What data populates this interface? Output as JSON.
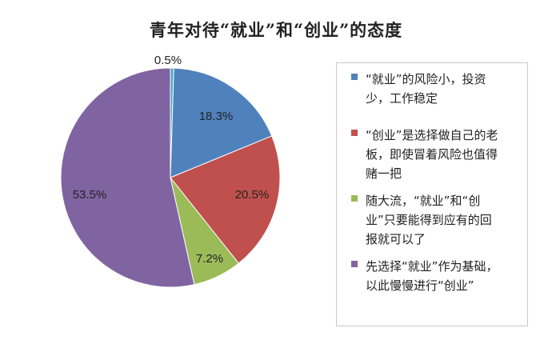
{
  "chart_data": {
    "type": "pie",
    "title": "青年对待“就业”和“创业”的态度",
    "legend_position": "right",
    "slices": [
      {
        "label": "“就业”的风险小，投资少，工作稳定",
        "value": 18.3,
        "display": "18.3%",
        "color": "#4F81BD"
      },
      {
        "label": "“创业”是选择做自己的老板，即使冒着风险也值得赌一把",
        "value": 20.5,
        "display": "20.5%",
        "color": "#C0504D"
      },
      {
        "label": "随大流，“就业”和“创业”只要能得到应有的回报就可以了",
        "value": 7.2,
        "display": "7.2%",
        "color": "#9BBB59"
      },
      {
        "label": "先选择“就业”作为基础，以此慢慢进行“创业”",
        "value": 53.5,
        "display": "53.5%",
        "color": "#8064A2"
      },
      {
        "label": "",
        "value": 0.5,
        "display": "0.5%",
        "color": "#4BACC6"
      }
    ]
  }
}
